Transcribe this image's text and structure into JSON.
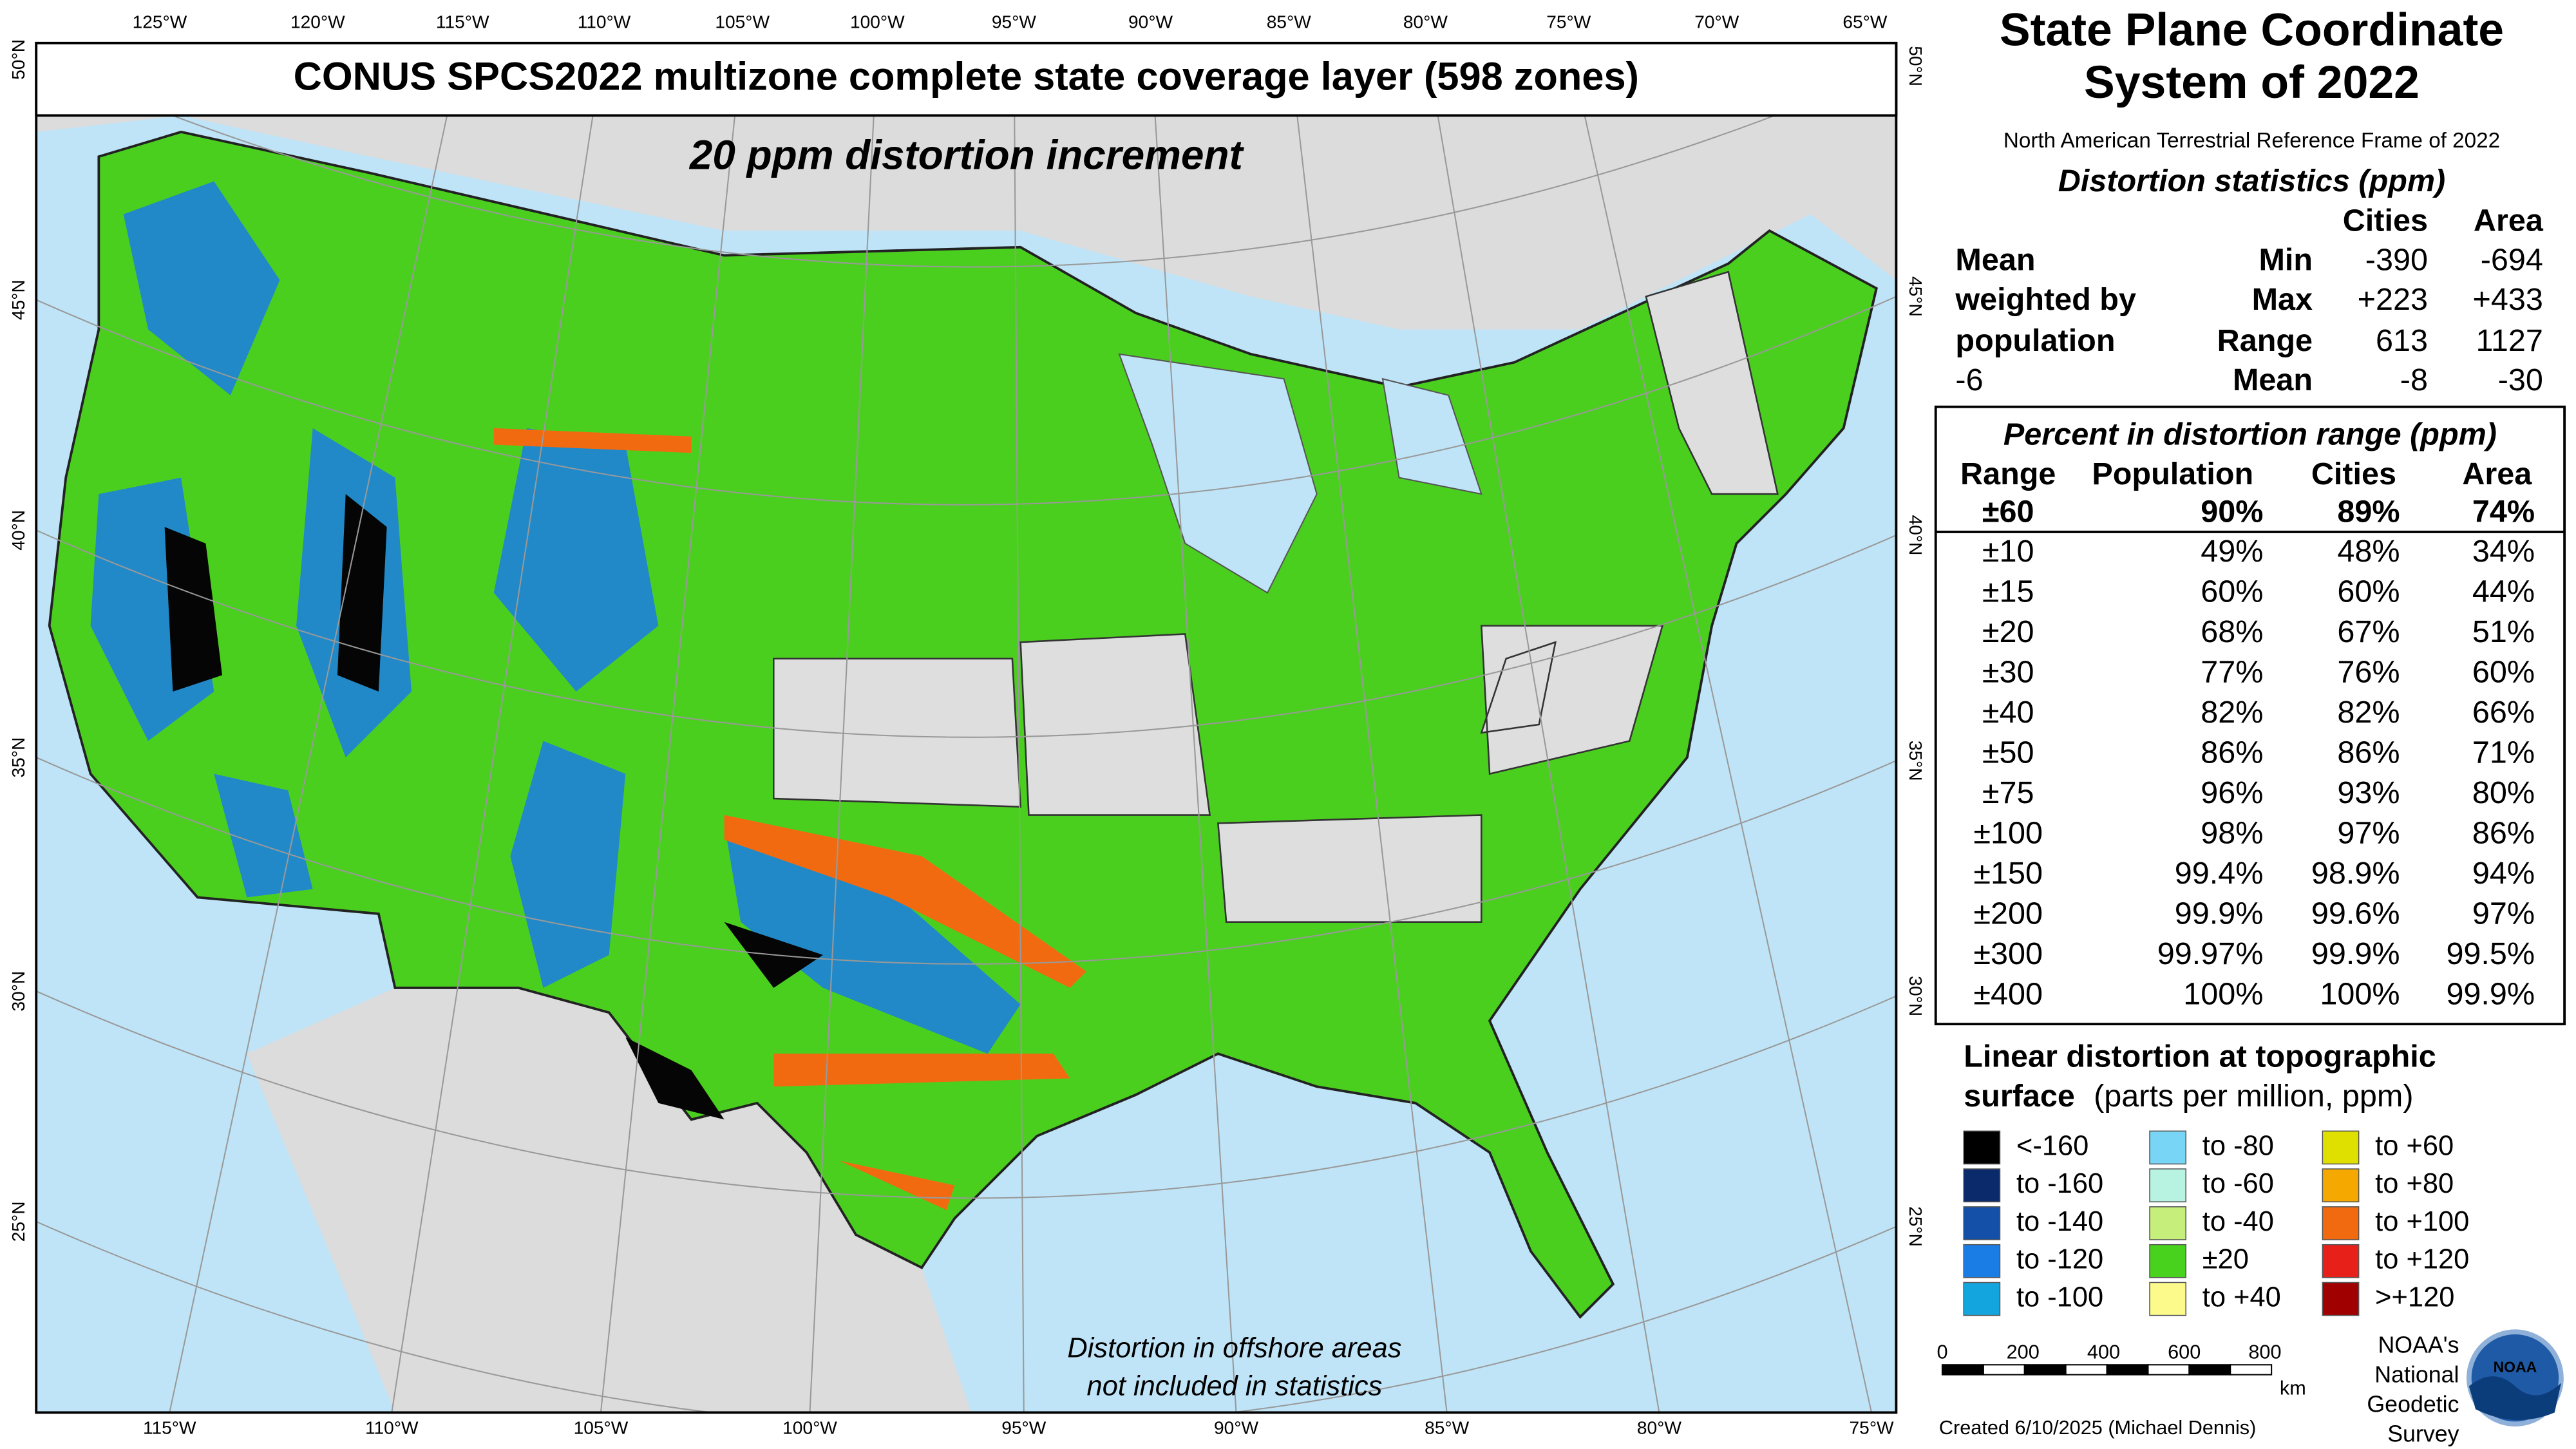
{
  "map": {
    "title": "CONUS SPCS2022 multizone complete state coverage layer (598 zones)",
    "subtitle": "20 ppm distortion increment",
    "note": [
      "Distortion in offshore areas",
      "not included in statistics"
    ],
    "top_longitudes": [
      "125°W",
      "120°W",
      "115°W",
      "110°W",
      "105°W",
      "100°W",
      "95°W",
      "90°W",
      "85°W",
      "80°W",
      "75°W",
      "70°W",
      "65°W"
    ],
    "bottom_longitudes": [
      "115°W",
      "110°W",
      "105°W",
      "100°W",
      "95°W",
      "90°W",
      "85°W",
      "80°W",
      "75°W"
    ],
    "left_latitudes": [
      "50°N",
      "45°N",
      "40°N",
      "35°N",
      "30°N",
      "25°N"
    ],
    "right_latitudes": [
      "50°N",
      "45°N",
      "40°N",
      "35°N",
      "30°N",
      "25°N"
    ]
  },
  "panel": {
    "title": [
      "State Plane Coordinate",
      "System of 2022"
    ],
    "frame": "North American Terrestrial Reference Frame of 2022",
    "stats_title": "Distortion statistics (ppm)",
    "stats_columns": [
      "Cities",
      "Area"
    ],
    "weighted": [
      "Mean",
      "weighted by",
      "population",
      "-6"
    ],
    "stats_rows": [
      [
        "Min",
        "-390",
        "-694"
      ],
      [
        "Max",
        "+223",
        "+433"
      ],
      [
        "Range",
        "613",
        "1127"
      ],
      [
        "Mean",
        "-8",
        "-30"
      ]
    ],
    "range_title": "Percent in distortion range (ppm)",
    "range_columns": [
      "Range",
      "Population",
      "Cities",
      "Area"
    ],
    "range_rows": [
      [
        "±60",
        "90%",
        "89%",
        "74%"
      ],
      [
        "±10",
        "49%",
        "48%",
        "34%"
      ],
      [
        "±15",
        "60%",
        "60%",
        "44%"
      ],
      [
        "±20",
        "68%",
        "67%",
        "51%"
      ],
      [
        "±30",
        "77%",
        "76%",
        "60%"
      ],
      [
        "±40",
        "82%",
        "82%",
        "66%"
      ],
      [
        "±50",
        "86%",
        "86%",
        "71%"
      ],
      [
        "±75",
        "96%",
        "93%",
        "80%"
      ],
      [
        "±100",
        "98%",
        "97%",
        "86%"
      ],
      [
        "±150",
        "99.4%",
        "98.9%",
        "94%"
      ],
      [
        "±200",
        "99.9%",
        "99.6%",
        "97%"
      ],
      [
        "±300",
        "99.97%",
        "99.9%",
        "99.5%"
      ],
      [
        "±400",
        "100%",
        "100%",
        "99.9%"
      ]
    ]
  },
  "legend": {
    "title": [
      "Linear distortion at topographic",
      "surface",
      "(parts per million, ppm)"
    ],
    "items": [
      {
        "label": "<-160",
        "color": "#000000"
      },
      {
        "label": "to -160",
        "color": "#0b2a6b"
      },
      {
        "label": "to -140",
        "color": "#1450a8"
      },
      {
        "label": "to -120",
        "color": "#1a7de6"
      },
      {
        "label": "to -100",
        "color": "#13a6de"
      },
      {
        "label": "to -80",
        "color": "#78d5f5"
      },
      {
        "label": "to -60",
        "color": "#b8f2e0"
      },
      {
        "label": "to -40",
        "color": "#c6ee7a"
      },
      {
        "label": "±20",
        "color": "#49d21d"
      },
      {
        "label": "to +40",
        "color": "#fbfa8a"
      },
      {
        "label": "to +60",
        "color": "#e0e000"
      },
      {
        "label": "to +80",
        "color": "#f5a800"
      },
      {
        "label": "to +100",
        "color": "#f26a10"
      },
      {
        "label": "to +120",
        "color": "#e8201a"
      },
      {
        "label": ">+120",
        "color": "#a00000"
      }
    ]
  },
  "scale": {
    "labels": [
      "0",
      "200",
      "400",
      "600",
      "800"
    ],
    "unit": "km"
  },
  "credit": "Created 6/10/2025 (Michael Dennis)",
  "agency": [
    "NOAA's",
    "National",
    "Geodetic",
    "Survey"
  ],
  "logo": "NOAA"
}
